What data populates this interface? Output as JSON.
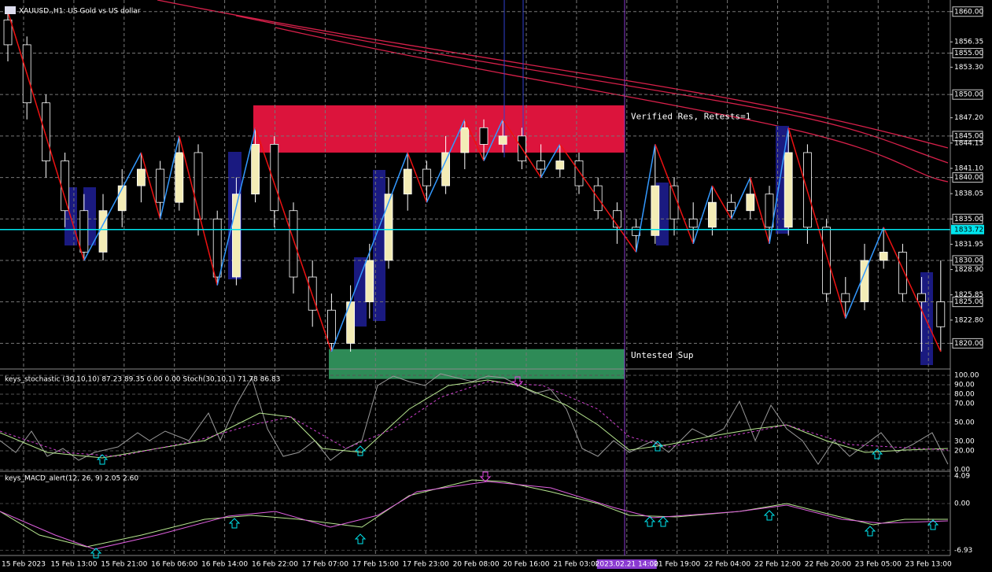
{
  "chart_data": {
    "type": "candlestick",
    "title": "XAUUSD.,H1: US Gold vs US dollar",
    "candles": {
      "open": [
        1859,
        1856,
        1849,
        1842,
        1836,
        1831,
        1836,
        1839,
        1841,
        1837,
        1843,
        1835,
        1828,
        1838,
        1844,
        1836,
        1828,
        1824,
        1820,
        1825,
        1830,
        1838,
        1841,
        1839,
        1843,
        1846,
        1844,
        1845,
        1842,
        1841,
        1842,
        1839,
        1836,
        1834,
        1833,
        1839,
        1835,
        1834,
        1837,
        1836,
        1838,
        1834,
        1843,
        1834,
        1826,
        1825,
        1830,
        1831,
        1826,
        1825
      ],
      "high": [
        1860,
        1857,
        1850,
        1843,
        1838,
        1838,
        1841,
        1843,
        1842,
        1845,
        1844,
        1836,
        1840,
        1846,
        1845,
        1837,
        1830,
        1826,
        1827,
        1832,
        1840,
        1843,
        1842,
        1845,
        1847,
        1847,
        1847,
        1846,
        1844,
        1844,
        1843,
        1840,
        1837,
        1835,
        1844,
        1840,
        1837,
        1839,
        1838,
        1840,
        1839,
        1846,
        1844,
        1835,
        1828,
        1832,
        1834,
        1832,
        1828,
        1830
      ],
      "low": [
        1854,
        1847,
        1840,
        1834,
        1830,
        1830,
        1834,
        1837,
        1835,
        1836,
        1833,
        1827,
        1827,
        1837,
        1834,
        1826,
        1822,
        1819,
        1819,
        1823,
        1829,
        1836,
        1837,
        1838,
        1841,
        1842,
        1843,
        1841,
        1840,
        1840,
        1838,
        1835,
        1832,
        1831,
        1832,
        1833,
        1832,
        1833,
        1835,
        1835,
        1832,
        1833,
        1832,
        1825,
        1823,
        1824,
        1829,
        1825,
        1819,
        1819
      ],
      "close": [
        1856,
        1849,
        1842,
        1836,
        1831,
        1836,
        1839,
        1841,
        1837,
        1843,
        1835,
        1828,
        1838,
        1844,
        1836,
        1828,
        1824,
        1820,
        1825,
        1830,
        1838,
        1841,
        1839,
        1843,
        1846,
        1844,
        1845,
        1842,
        1841,
        1842,
        1839,
        1836,
        1834,
        1833,
        1839,
        1835,
        1834,
        1837,
        1836,
        1838,
        1834,
        1843,
        1834,
        1826,
        1825,
        1830,
        1831,
        1826,
        1825,
        1822
      ]
    },
    "ylim": [
      1817,
      1861.4
    ],
    "yticks": [
      {
        "value": 1860,
        "label": "1860.00"
      },
      {
        "value": 1856.35,
        "label": "1856.35"
      },
      {
        "value": 1855,
        "label": "1855.00"
      },
      {
        "value": 1853.3,
        "label": "1853.30"
      },
      {
        "value": 1850,
        "label": "1850.00"
      },
      {
        "value": 1847.2,
        "label": "1847.20"
      },
      {
        "value": 1845,
        "label": "1845.00"
      },
      {
        "value": 1844.15,
        "label": "1844.15"
      },
      {
        "value": 1841.1,
        "label": "1841.10"
      },
      {
        "value": 1840,
        "label": "1840.00"
      },
      {
        "value": 1838.05,
        "label": "1838.05"
      },
      {
        "value": 1835,
        "label": "1835.00"
      },
      {
        "value": 1831.95,
        "label": "1831.95"
      },
      {
        "value": 1830,
        "label": "1830.00"
      },
      {
        "value": 1828.9,
        "label": "1828.90"
      },
      {
        "value": 1825.85,
        "label": "1825.85"
      },
      {
        "value": 1825,
        "label": "1825.00"
      },
      {
        "value": 1822.8,
        "label": "1822.80"
      },
      {
        "value": 1820,
        "label": "1820.00"
      }
    ],
    "current_price": {
      "value": 1833.72,
      "label": "1833.72"
    },
    "resistance_zone": {
      "low": 1843,
      "high": 1848.7,
      "label": "Verified Res, Retests=1"
    },
    "support_zone": {
      "low": 1815.7,
      "high": 1819.3,
      "label": "Untested Sup"
    },
    "xticks": [
      "15 Feb 2023",
      "15 Feb 13:00",
      "15 Feb 21:00",
      "16 Feb 06:00",
      "16 Feb 14:00",
      "16 Feb 22:00",
      "17 Feb 07:00",
      "17 Feb 15:00",
      "17 Feb 23:00",
      "20 Feb 08:00",
      "20 Feb 16:00",
      "21 Feb 03:00",
      "2023.02.21 14:00",
      "21 Feb 19:00",
      "22 Feb 04:00",
      "22 Feb 12:00",
      "22 Feb 20:00",
      "23 Feb 05:00",
      "23 Feb 13:00"
    ],
    "highlight_index": 12,
    "stochastic": {
      "label": "keys_stochastic (30,10,10) 87.23 89.35 0.00 0.00 Stoch(30,10,1) 71.78 86.83",
      "ylim": [
        -0.8,
        104.2
      ],
      "yticks": [
        {
          "value": 100,
          "label": "100.00"
        },
        {
          "value": 90,
          "label": "90.00"
        },
        {
          "value": 80,
          "label": "80.00"
        },
        {
          "value": 70,
          "label": "70.00"
        },
        {
          "value": 50,
          "label": "50.00"
        },
        {
          "value": 30,
          "label": "30.00"
        },
        {
          "value": 20,
          "label": "20.00"
        },
        {
          "value": 0,
          "label": "0.00"
        }
      ]
    },
    "macd": {
      "label": "keys_MACD_alert(12, 26, 9) 2.05 2.60",
      "ylim": [
        -7.59,
        4.67
      ],
      "yticks": [
        {
          "value": 4.09,
          "label": "4.09"
        },
        {
          "value": 0,
          "label": "0.00"
        },
        {
          "value": -6.93,
          "label": "-6.93"
        }
      ]
    }
  }
}
